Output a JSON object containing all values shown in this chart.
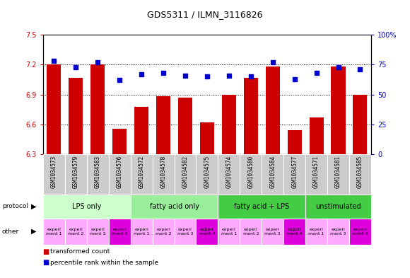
{
  "title": "GDS5311 / ILMN_3116826",
  "samples": [
    "GSM1034573",
    "GSM1034579",
    "GSM1034583",
    "GSM1034576",
    "GSM1034572",
    "GSM1034578",
    "GSM1034582",
    "GSM1034575",
    "GSM1034574",
    "GSM1034580",
    "GSM1034584",
    "GSM1034577",
    "GSM1034571",
    "GSM1034581",
    "GSM1034585"
  ],
  "bar_values": [
    7.2,
    7.07,
    7.2,
    6.56,
    6.78,
    6.88,
    6.87,
    6.62,
    6.9,
    7.07,
    7.18,
    6.54,
    6.67,
    7.18,
    6.9
  ],
  "dot_values": [
    78,
    73,
    77,
    62,
    67,
    68,
    66,
    65,
    66,
    65,
    77,
    63,
    68,
    73,
    71
  ],
  "ylim_left": [
    6.3,
    7.5
  ],
  "ylim_right": [
    0,
    100
  ],
  "yticks_left": [
    6.3,
    6.6,
    6.9,
    7.2,
    7.5
  ],
  "yticks_right": [
    0,
    25,
    50,
    75,
    100
  ],
  "bar_color": "#cc0000",
  "dot_color": "#0000cc",
  "grid_color": "#000000",
  "bg_color": "#ffffff",
  "sample_bg_color": "#cccccc",
  "protocol_data": [
    {
      "label": "LPS only",
      "start": 0,
      "end": 4,
      "color": "#ccffcc"
    },
    {
      "label": "fatty acid only",
      "start": 4,
      "end": 8,
      "color": "#99ee99"
    },
    {
      "label": "fatty acid + LPS",
      "start": 8,
      "end": 12,
      "color": "#44cc44"
    },
    {
      "label": "unstimulated",
      "start": 12,
      "end": 15,
      "color": "#44cc44"
    }
  ],
  "other_colors": [
    "#ffaaff",
    "#ffaaff",
    "#ffaaff",
    "#dd00dd",
    "#ffaaff",
    "#ffaaff",
    "#ffaaff",
    "#dd00dd",
    "#ffaaff",
    "#ffaaff",
    "#ffaaff",
    "#dd00dd",
    "#ffaaff",
    "#ffaaff",
    "#dd00dd"
  ],
  "other_labels": [
    "experi\nment 1",
    "experi\nment 2",
    "experi\nment 3",
    "experi\nment 4",
    "experi\nment 1",
    "experi\nment 2",
    "experi\nment 3",
    "experi\nment 4",
    "experi\nment 1",
    "experi\nment 2",
    "experi\nment 3",
    "experi\nment 4",
    "experi\nment 1",
    "experi\nment 3",
    "experi\nment 4"
  ],
  "legend_red": "transformed count",
  "legend_blue": "percentile rank within the sample",
  "label_protocol": "protocol",
  "label_other": "other"
}
